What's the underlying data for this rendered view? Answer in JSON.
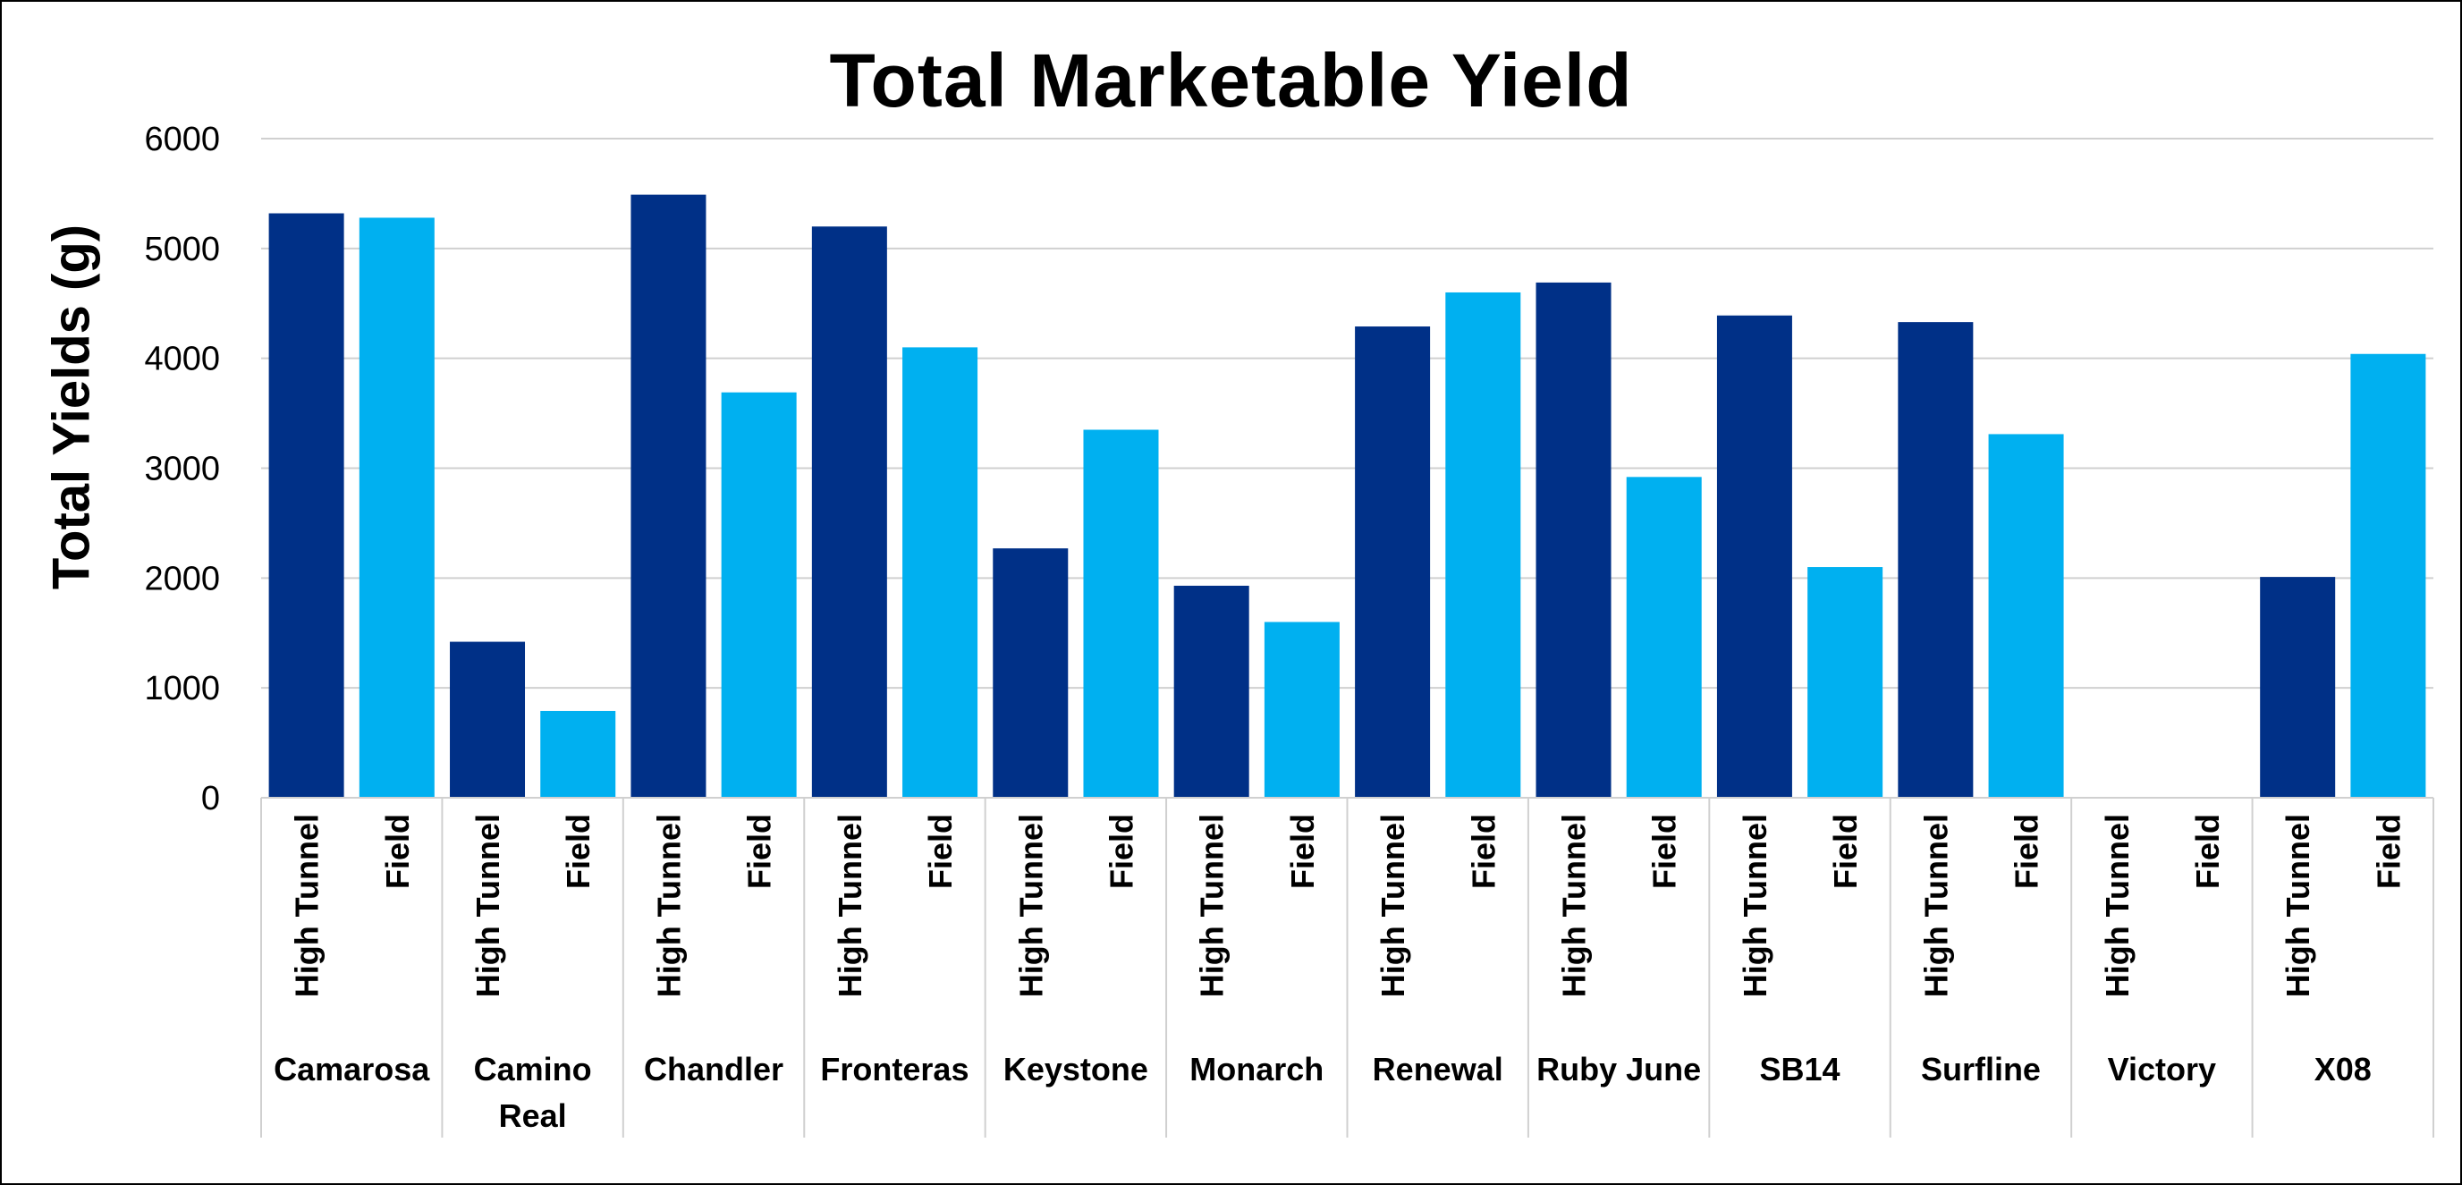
{
  "chart_data": {
    "type": "bar",
    "title": "Total Marketable Yield",
    "ylabel": "Total Yields (g)",
    "xlabel": "",
    "ylim": [
      0,
      6000
    ],
    "yticks": [
      0,
      1000,
      2000,
      3000,
      4000,
      5000,
      6000
    ],
    "grid": true,
    "legend": "none",
    "categories": [
      "Camarosa",
      "Camino Real",
      "Chandler",
      "Fronteras",
      "Keystone",
      "Monarch",
      "Renewal",
      "Ruby June",
      "SB14",
      "Surfline",
      "Victory",
      "X08"
    ],
    "series": [
      {
        "name": "High Tunnel",
        "color": "#003087",
        "values": [
          5320,
          1420,
          5490,
          5200,
          2270,
          1930,
          4290,
          4690,
          4390,
          4330,
          0,
          2010
        ]
      },
      {
        "name": "Field",
        "color": "#00B0F0",
        "values": [
          5280,
          790,
          3690,
          4100,
          3350,
          1600,
          4600,
          2920,
          2100,
          3310,
          0,
          4040
        ]
      }
    ]
  }
}
